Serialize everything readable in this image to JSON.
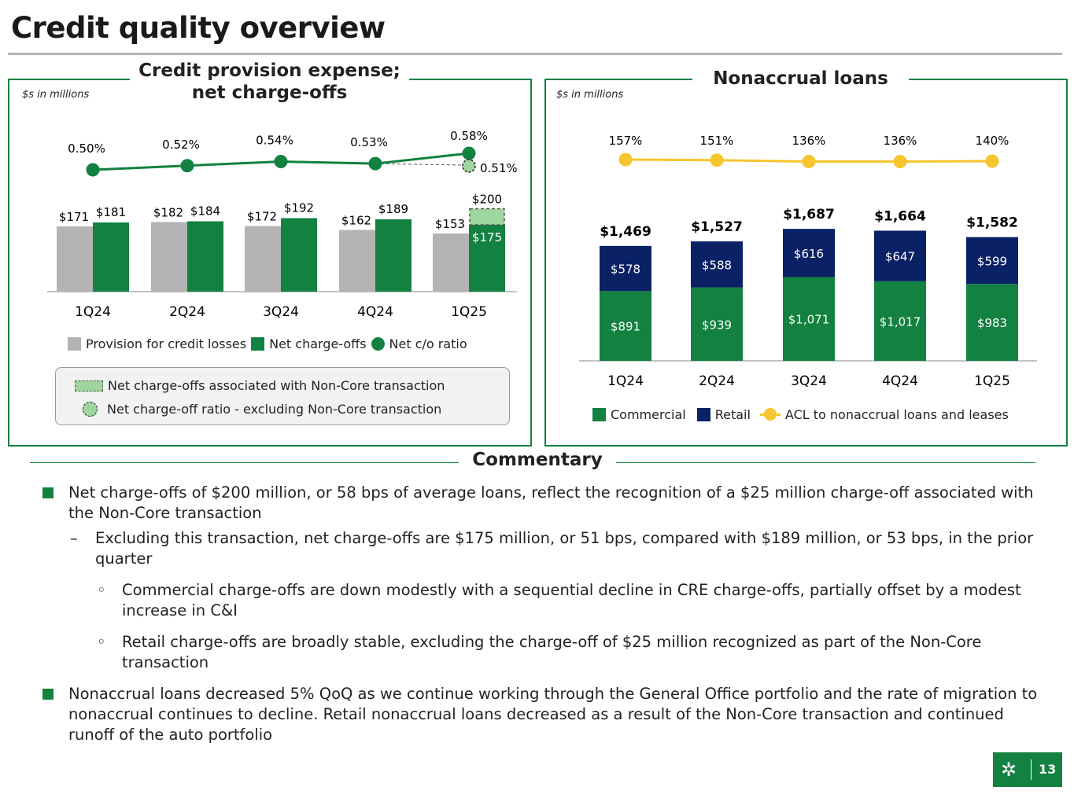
{
  "title": "Credit quality overview",
  "left": {
    "title_line1": "Credit provision expense;",
    "title_line2": "net charge-offs",
    "unit": "$s in millions",
    "legend": [
      "Provision for credit losses",
      "Net charge-offs",
      "Net c/o ratio"
    ],
    "notes": [
      "Net charge-offs associated with Non-Core transaction",
      "Net charge-off ratio - excluding Non-Core transaction"
    ]
  },
  "right": {
    "title": "Nonaccrual loans",
    "unit": "$s in millions",
    "legend": [
      "Commercial",
      "Retail",
      "ACL to nonaccrual loans and leases"
    ]
  },
  "chart_data": [
    {
      "type": "bar",
      "categories": [
        "1Q24",
        "2Q24",
        "3Q24",
        "4Q24",
        "1Q25"
      ],
      "series": [
        {
          "name": "Provision for credit losses",
          "values": [
            171,
            182,
            172,
            162,
            153
          ],
          "labels": [
            "$171",
            "$182",
            "$172",
            "$162",
            "$153"
          ]
        },
        {
          "name": "Net charge-offs",
          "values": [
            181,
            184,
            192,
            189,
            200
          ],
          "labels": [
            "$181",
            "$184",
            "$192",
            "$189",
            "$200"
          ]
        },
        {
          "name": "Net charge-offs excluding Non-Core transaction",
          "values": [
            null,
            null,
            null,
            null,
            175
          ],
          "labels": [
            "",
            "",
            "",
            "",
            "$175"
          ]
        },
        {
          "name": "Net c/o ratio",
          "type": "line",
          "values": [
            0.5,
            0.52,
            0.54,
            0.53,
            0.58
          ],
          "labels": [
            "0.50%",
            "0.52%",
            "0.54%",
            "0.53%",
            "0.58%"
          ]
        },
        {
          "name": "Net charge-off ratio - excluding Non-Core transaction",
          "type": "line",
          "values": [
            null,
            null,
            null,
            0.53,
            0.51
          ],
          "labels": [
            "",
            "",
            "",
            "",
            "0.51%"
          ]
        }
      ],
      "colors": {
        "provision": "#b3b3b3",
        "nco": "#138140",
        "noncore": "#9fd69f"
      }
    },
    {
      "type": "stacked-bar",
      "categories": [
        "1Q24",
        "2Q24",
        "3Q24",
        "4Q24",
        "1Q25"
      ],
      "series": [
        {
          "name": "Commercial",
          "values": [
            891,
            939,
            1071,
            1017,
            983
          ],
          "labels": [
            "$891",
            "$939",
            "$1,071",
            "$1,017",
            "$983"
          ]
        },
        {
          "name": "Retail",
          "values": [
            578,
            588,
            616,
            647,
            599
          ],
          "labels": [
            "$578",
            "$588",
            "$616",
            "$647",
            "$599"
          ]
        },
        {
          "name": "ACL to nonaccrual loans and leases",
          "type": "line",
          "values": [
            157,
            151,
            136,
            136,
            140
          ],
          "labels": [
            "157%",
            "151%",
            "136%",
            "136%",
            "140%"
          ]
        }
      ],
      "totals": [
        "$1,469",
        "$1,527",
        "$1,687",
        "$1,664",
        "$1,582"
      ],
      "colors": {
        "commercial": "#138140",
        "retail": "#0a2166",
        "acl": "#f7c52d"
      }
    }
  ],
  "commentary": {
    "title": "Commentary",
    "items": [
      {
        "level": 1,
        "text": "Net charge-offs of $200 million, or 58 bps of average loans, reflect the recognition of a $25 million charge-off associated with the Non-Core transaction"
      },
      {
        "level": 2,
        "text": "Excluding this transaction, net charge-offs are $175 million, or 51 bps, compared with $189 million, or 53 bps, in the prior quarter"
      },
      {
        "level": 3,
        "text": "Commercial charge-offs are down modestly with a sequential decline in CRE charge-offs, partially offset by a modest increase in C&I"
      },
      {
        "level": 3,
        "text": "Retail charge-offs are broadly stable, excluding the charge-off of $25 million recognized as part of the Non-Core transaction"
      },
      {
        "level": 1,
        "text": "Nonaccrual loans decreased 5% QoQ as we continue working through the General Office portfolio and the rate of migration to nonaccrual continues to decline. Retail nonaccrual loans decreased as a result of the Non-Core transaction and continued runoff of the auto portfolio"
      }
    ]
  },
  "page_number": "13"
}
